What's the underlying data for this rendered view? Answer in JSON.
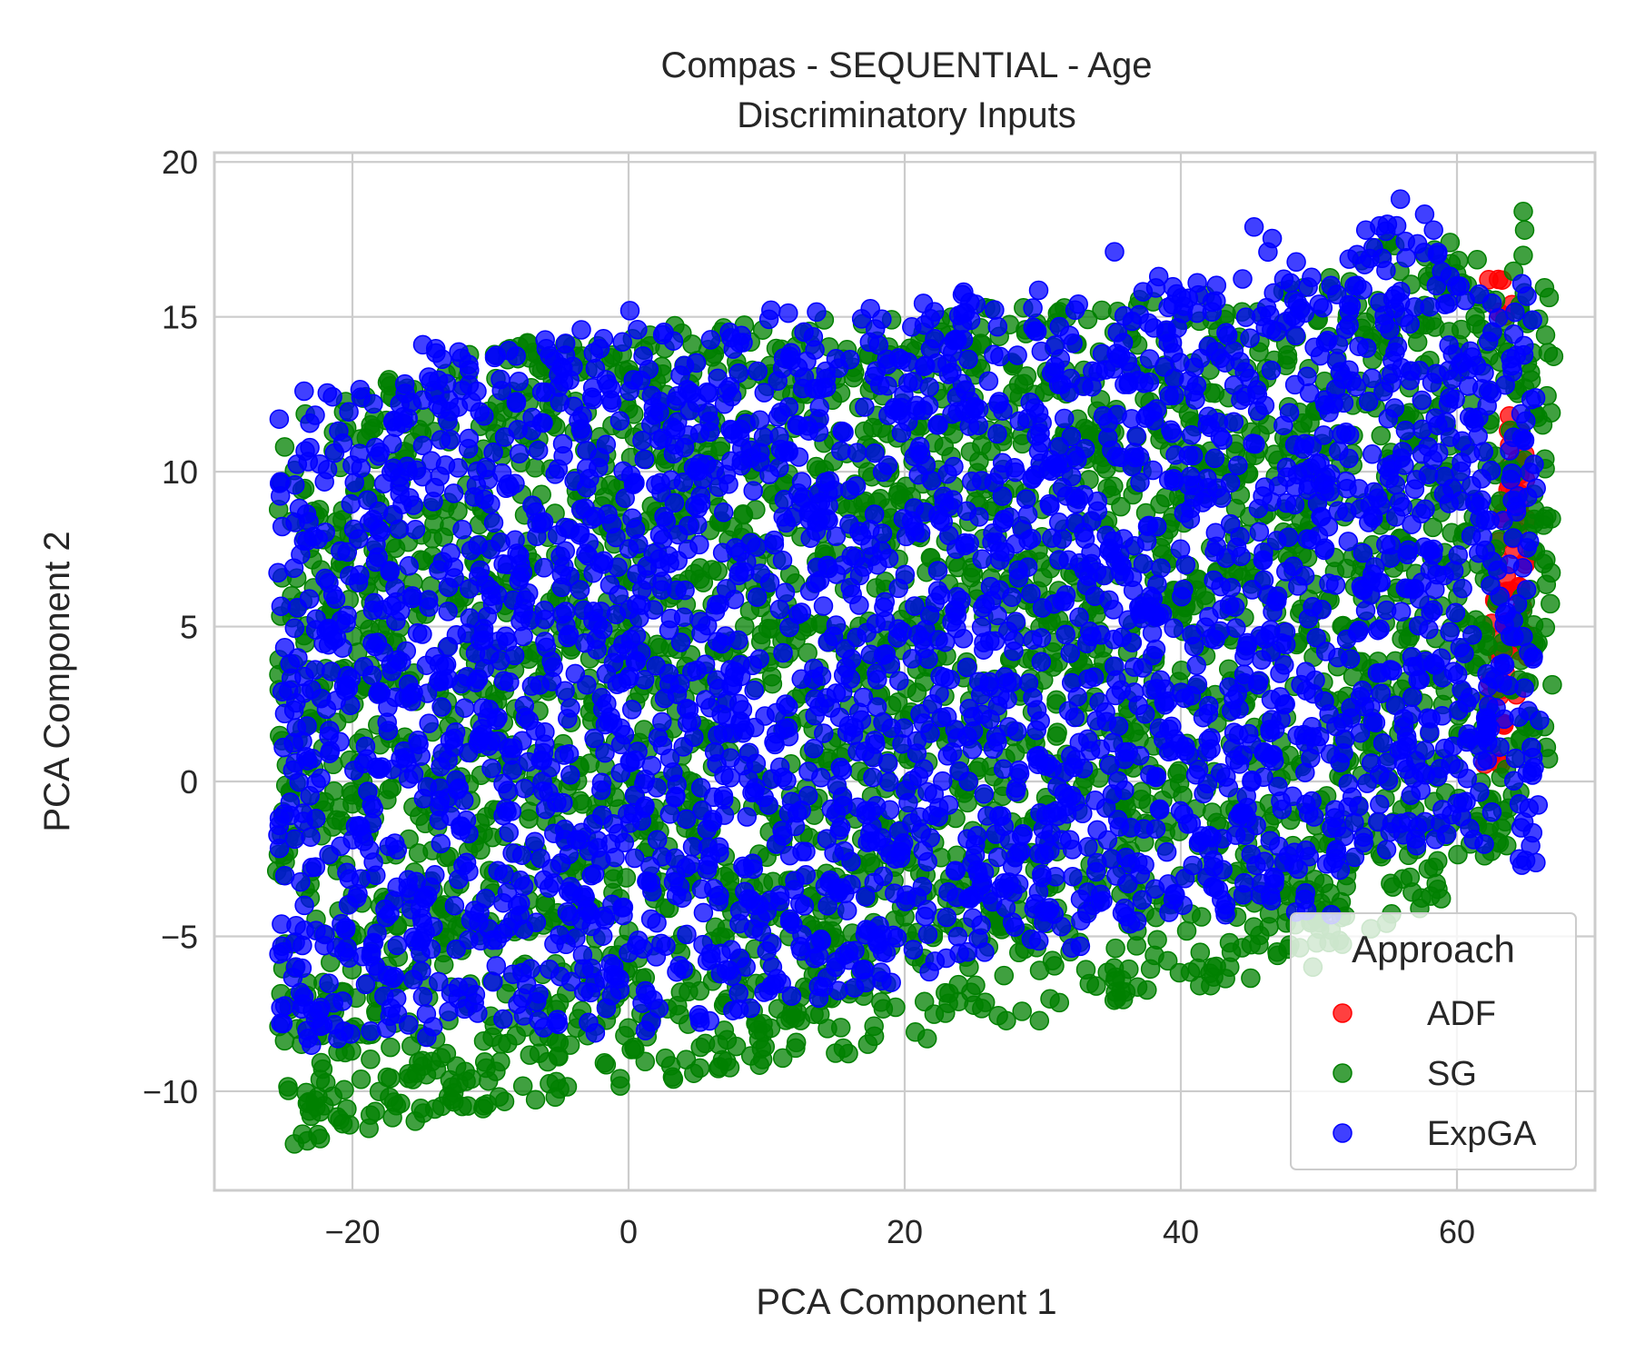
{
  "chart_data": {
    "type": "scatter",
    "title_line1": "Compas - SEQUENTIAL - Age",
    "title_line2": "Discriminatory Inputs",
    "xlabel": "PCA Component 1",
    "ylabel": "PCA Component 2",
    "xlim": [
      -30,
      70
    ],
    "ylim": [
      -13.2,
      20.3
    ],
    "x_ticks": [
      {
        "value": -20,
        "label": "−20"
      },
      {
        "value": 0,
        "label": "0"
      },
      {
        "value": 20,
        "label": "20"
      },
      {
        "value": 40,
        "label": "40"
      },
      {
        "value": 60,
        "label": "60"
      }
    ],
    "y_ticks": [
      {
        "value": -10,
        "label": "−10"
      },
      {
        "value": -5,
        "label": "−5"
      },
      {
        "value": 0,
        "label": "0"
      },
      {
        "value": 5,
        "label": "5"
      },
      {
        "value": 10,
        "label": "10"
      },
      {
        "value": 15,
        "label": "15"
      },
      {
        "value": 20,
        "label": "20"
      }
    ],
    "grid": true,
    "legend": {
      "title": "Approach",
      "position": "lower-right"
    },
    "series": [
      {
        "name": "ADF",
        "color": "#ff0000",
        "bands": [
          [
            62,
            0.5,
            4
          ],
          [
            62.5,
            2.5,
            6
          ],
          [
            63,
            0.5,
            9
          ],
          [
            63.5,
            3,
            12
          ],
          [
            64,
            3.5,
            11
          ],
          [
            64.5,
            4,
            12
          ],
          [
            62.5,
            15,
            16.3
          ]
        ],
        "points": [
          [
            62.3,
            16.2
          ],
          [
            63.2,
            8.5
          ],
          [
            64.1,
            7.5
          ],
          [
            63.5,
            3.5
          ],
          [
            63.0,
            0.6
          ],
          [
            64.3,
            2.8
          ],
          [
            63.8,
            11.8
          ],
          [
            64.5,
            9.3
          ]
        ]
      },
      {
        "name": "SG",
        "color": "#008000",
        "bands": [
          [
            -25.5,
            -10,
            11.5
          ],
          [
            -24,
            -11.7,
            12
          ],
          [
            -22,
            -11.5,
            12.5
          ],
          [
            -20,
            -11.2,
            12.7
          ],
          [
            -18,
            -11,
            13
          ],
          [
            -16,
            -11,
            13.3
          ],
          [
            -14,
            -10.8,
            13.5
          ],
          [
            -12,
            -10.7,
            13.8
          ],
          [
            -10,
            -10.5,
            14
          ],
          [
            -8,
            -10.3,
            14.2
          ],
          [
            -6,
            -10.2,
            14.4
          ],
          [
            -4,
            -10.1,
            14.5
          ],
          [
            -2,
            -10,
            14.6
          ],
          [
            0,
            -9.9,
            14.8
          ],
          [
            2,
            -9.7,
            14.8
          ],
          [
            4,
            -9.5,
            14.9
          ],
          [
            6,
            -9.4,
            14.9
          ],
          [
            8,
            -9.2,
            15
          ],
          [
            10,
            -9.1,
            15
          ],
          [
            12,
            -9,
            15
          ],
          [
            14,
            -8.8,
            15.1
          ],
          [
            16,
            -8.6,
            15.1
          ],
          [
            18,
            -8.5,
            15.2
          ],
          [
            20,
            -8.4,
            15.2
          ],
          [
            22,
            -8.2,
            15.3
          ],
          [
            24,
            -8,
            15.3
          ],
          [
            26,
            -7.9,
            15.3
          ],
          [
            28,
            -7.8,
            15.4
          ],
          [
            30,
            -7.6,
            15.4
          ],
          [
            32,
            -7.5,
            15.5
          ],
          [
            34,
            -7.4,
            15.5
          ],
          [
            36,
            -7.2,
            15.6
          ],
          [
            38,
            -7,
            15.7
          ],
          [
            40,
            -6.8,
            15.8
          ],
          [
            42,
            -6.6,
            15.9
          ],
          [
            44,
            -6.4,
            16
          ],
          [
            46,
            -6.2,
            16
          ],
          [
            48,
            -6,
            16.2
          ],
          [
            50,
            -5.6,
            16.5
          ],
          [
            52,
            -5,
            17
          ],
          [
            54,
            -4.6,
            17.5
          ],
          [
            56,
            -4,
            17.2
          ],
          [
            58,
            -3.8,
            17.5
          ],
          [
            60,
            -3,
            17.4
          ],
          [
            62,
            -2.5,
            16.5
          ],
          [
            64,
            -2,
            18.2
          ],
          [
            65,
            0,
            17
          ],
          [
            65.5,
            0.5,
            16
          ]
        ],
        "points": [
          [
            64.8,
            18.4
          ],
          [
            64.9,
            17.8
          ],
          [
            55.5,
            17.3
          ],
          [
            59.5,
            17.4
          ],
          [
            57.3,
            -4.1
          ],
          [
            58.1,
            -3.7
          ],
          [
            65.1,
            13.5
          ],
          [
            65.3,
            6.2
          ],
          [
            65.0,
            4.4
          ],
          [
            65.4,
            2.1
          ],
          [
            62.0,
            -2.4
          ],
          [
            63.5,
            -1.3
          ],
          [
            -24.2,
            -11.7
          ],
          [
            -22.5,
            -11.4
          ],
          [
            -18.8,
            -11.2
          ]
        ]
      },
      {
        "name": "ExpGA",
        "color": "#0000ff",
        "bands": [
          [
            -25.5,
            -8,
            11.7
          ],
          [
            -24,
            -8.7,
            12
          ],
          [
            -22,
            -8.3,
            12.6
          ],
          [
            -20,
            -8.2,
            12.8
          ],
          [
            -18,
            -8.4,
            13
          ],
          [
            -16,
            -8.3,
            13.8
          ],
          [
            -14,
            -8.3,
            14.1
          ],
          [
            -12,
            -8.2,
            13.6
          ],
          [
            -10,
            -8,
            14.2
          ],
          [
            -8,
            -8.1,
            14.5
          ],
          [
            -6,
            -8,
            14.2
          ],
          [
            -4,
            -8.2,
            14.6
          ],
          [
            -2,
            -8,
            14.5
          ],
          [
            0,
            -8.1,
            15.2
          ],
          [
            2,
            -8,
            14.6
          ],
          [
            4,
            -7.8,
            14.3
          ],
          [
            6,
            -7.6,
            14.8
          ],
          [
            8,
            -7.5,
            14.9
          ],
          [
            10,
            -7.3,
            15.3
          ],
          [
            12,
            -7.2,
            15.4
          ],
          [
            14,
            -7,
            15.2
          ],
          [
            16,
            -6.8,
            15.3
          ],
          [
            18,
            -6.6,
            15.2
          ],
          [
            20,
            -6.4,
            15.6
          ],
          [
            22,
            -6.2,
            15.8
          ],
          [
            24,
            -6,
            16
          ],
          [
            26,
            -5.8,
            15.7
          ],
          [
            28,
            -5.6,
            15.9
          ],
          [
            30,
            -5.4,
            15.2
          ],
          [
            32,
            -5.7,
            15.5
          ],
          [
            34,
            -5.2,
            15.7
          ],
          [
            36,
            -5,
            16
          ],
          [
            38,
            -4.6,
            16.3
          ],
          [
            40,
            -4.3,
            16.4
          ],
          [
            42,
            -4.5,
            16.3
          ],
          [
            44,
            -4,
            16.5
          ],
          [
            46,
            -4.2,
            17.8
          ],
          [
            48,
            -4.3,
            16.8
          ],
          [
            50,
            -3.7,
            16.5
          ],
          [
            52,
            -3.2,
            17.5
          ],
          [
            54,
            -2.8,
            18
          ],
          [
            56,
            -2.5,
            18.8
          ],
          [
            58,
            -2.6,
            17.2
          ],
          [
            60,
            -2.6,
            16.5
          ],
          [
            62,
            -1.7,
            16
          ],
          [
            63.5,
            -1.5,
            15.5
          ],
          [
            64.5,
            -2.7,
            16.2
          ]
        ],
        "points": [
          [
            55.9,
            18.8
          ],
          [
            45.3,
            17.9
          ],
          [
            35.2,
            17.1
          ],
          [
            53.4,
            17.8
          ],
          [
            58.3,
            17.8
          ],
          [
            64.7,
            -2.7
          ],
          [
            54.9,
            -2.2
          ],
          [
            56.5,
            -1.3
          ],
          [
            -23.5,
            12.6
          ],
          [
            -25.3,
            11.7
          ],
          [
            -14.9,
            14.1
          ],
          [
            0.1,
            15.2
          ],
          [
            38.4,
            16.3
          ],
          [
            61.1,
            13.7
          ],
          [
            50.9,
            -4.3
          ]
        ]
      }
    ]
  }
}
